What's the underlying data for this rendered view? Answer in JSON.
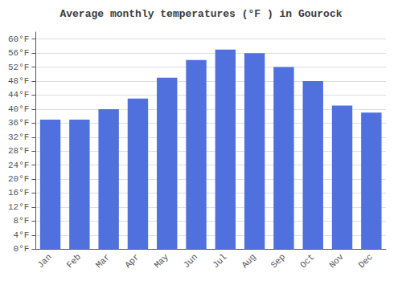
{
  "chart_data": {
    "type": "bar",
    "title": "Average monthly temperatures (°F ) in Gourock",
    "categories": [
      "Jan",
      "Feb",
      "Mar",
      "Apr",
      "May",
      "Jun",
      "Jul",
      "Aug",
      "Sep",
      "Oct",
      "Nov",
      "Dec"
    ],
    "values": [
      37,
      37,
      40,
      43,
      49,
      54,
      57,
      56,
      52,
      48,
      41,
      39
    ],
    "ylim": [
      0,
      62
    ],
    "yticks": [
      {
        "value": 0,
        "label": "0°F"
      },
      {
        "value": 4,
        "label": "4°F"
      },
      {
        "value": 8,
        "label": "8°F"
      },
      {
        "value": 12,
        "label": "12°F"
      },
      {
        "value": 16,
        "label": "16°F"
      },
      {
        "value": 20,
        "label": "20°F"
      },
      {
        "value": 24,
        "label": "24°F"
      },
      {
        "value": 28,
        "label": "28°F"
      },
      {
        "value": 32,
        "label": "32°F"
      },
      {
        "value": 36,
        "label": "36°F"
      },
      {
        "value": 40,
        "label": "40°F"
      },
      {
        "value": 44,
        "label": "44°F"
      },
      {
        "value": 48,
        "label": "48°F"
      },
      {
        "value": 52,
        "label": "52°F"
      },
      {
        "value": 56,
        "label": "56°F"
      },
      {
        "value": 60,
        "label": "60°F"
      }
    ],
    "grid": true
  }
}
